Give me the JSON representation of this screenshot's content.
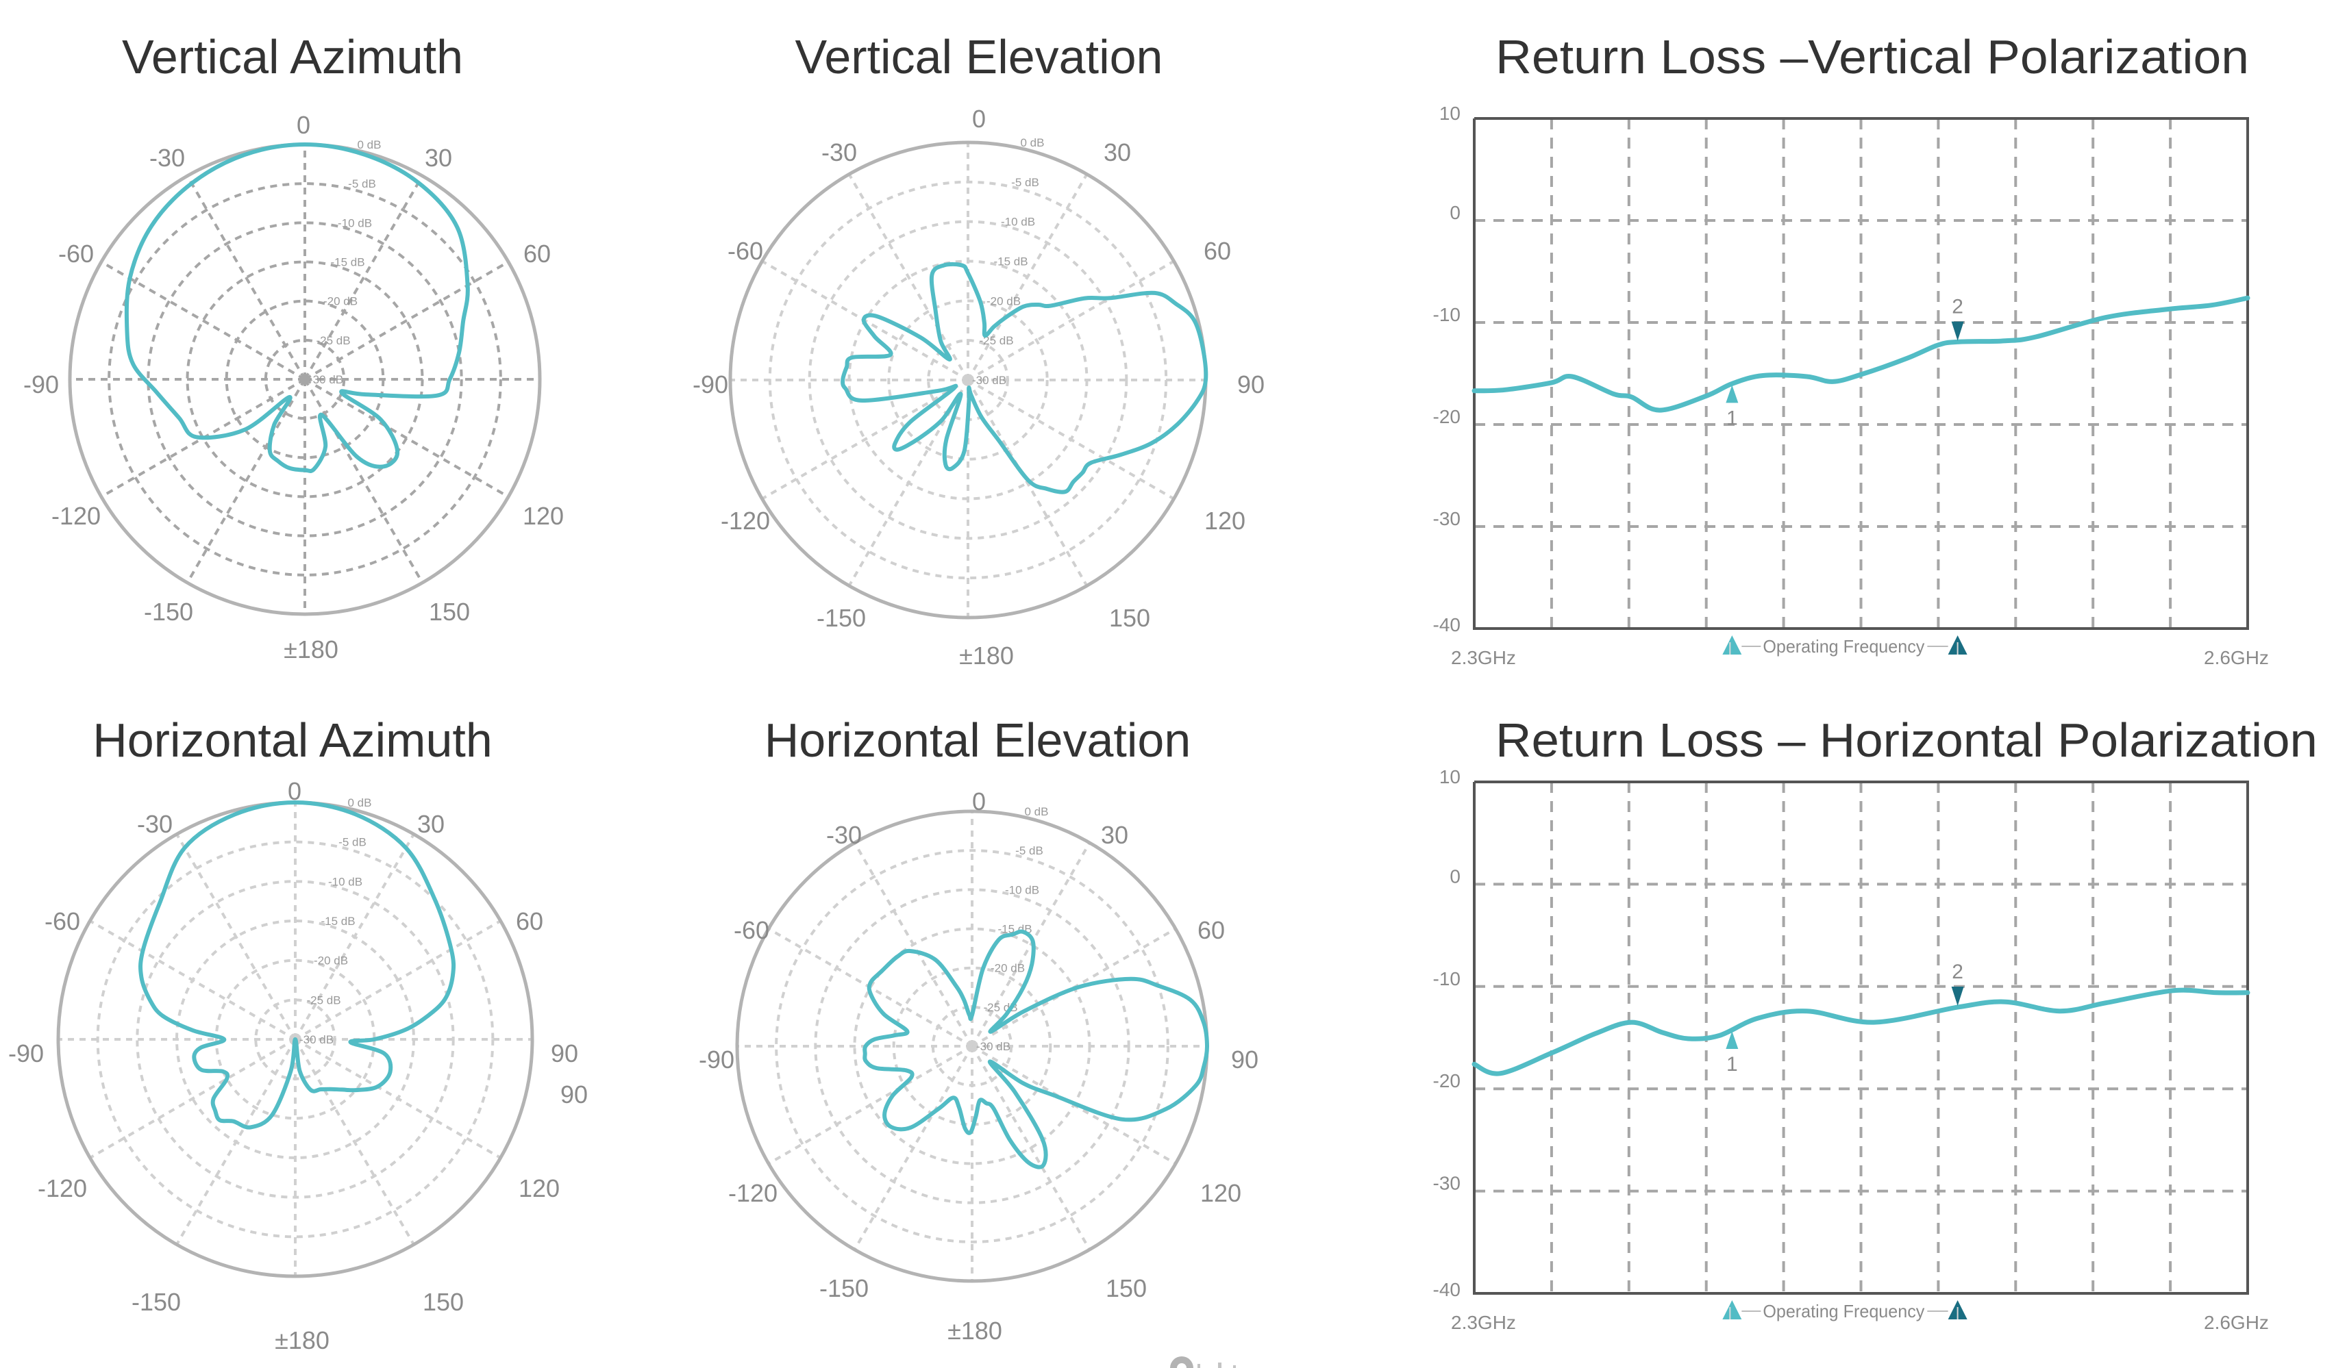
{
  "titles": {
    "vertical_azimuth": "Vertical Azimuth",
    "vertical_elevation": "Vertical Elevation",
    "return_loss_vertical": "Return Loss –Vertical Polarization",
    "horizontal_azimuth": "Horizontal Azimuth",
    "horizontal_elevation": "Horizontal Elevation",
    "return_loss_horizontal": "Return Loss – Horizontal Polarization"
  },
  "colors": {
    "trace": "#52bcc5",
    "marker_light": "#52bcc5",
    "marker_dark": "#1a6e82",
    "grid_dark": "#a6a6a6",
    "grid_light": "#d0d0d0",
    "outer_circle": "#b3b3b3",
    "frame": "#555555",
    "title": "#333333",
    "label": "#8a8a8a"
  },
  "legend": {
    "label": "Operating Frequency",
    "icon_left": "triangle-up-light-icon",
    "icon_right": "triangle-up-dark-icon"
  },
  "logo": {
    "icon": "brand-logo-icon-partial"
  },
  "chart_data": [
    {
      "id": "vertical_azimuth",
      "type": "polar",
      "title": "Vertical Azimuth",
      "radial_unit": "dB",
      "radial_ticks": [
        "0 dB",
        "-5 dB",
        "-10 dB",
        "-15 dB",
        "-20 dB",
        "-25 dB",
        "-30 dB"
      ],
      "rlim": [
        -30,
        0
      ],
      "angle_labels": [
        {
          "text": "0",
          "x": 443,
          "y": 195
        },
        {
          "text": "-30",
          "x": 244,
          "y": 243
        },
        {
          "text": "30",
          "x": 640,
          "y": 243
        },
        {
          "text": "-60",
          "x": 111,
          "y": 383
        },
        {
          "text": "60",
          "x": 784,
          "y": 383
        },
        {
          "text": "-90",
          "x": 60,
          "y": 574
        },
        {
          "text": "-120",
          "x": 111,
          "y": 766
        },
        {
          "text": "120",
          "x": 793,
          "y": 766
        },
        {
          "text": "-150",
          "x": 246,
          "y": 906
        },
        {
          "text": "150",
          "x": 656,
          "y": 906
        },
        {
          "text": "±180",
          "x": 454,
          "y": 961
        }
      ],
      "grid_style": "dark",
      "series": [
        {
          "name": "Vertical Azimuth",
          "angles": [
            0,
            15,
            30,
            45,
            60,
            70,
            80,
            90,
            97,
            104,
            110,
            118,
            128,
            138,
            146,
            155,
            163,
            174,
            180,
            190,
            198,
            206,
            214,
            221,
            230,
            242,
            253,
            265,
            275,
            285,
            300,
            315,
            330,
            345,
            360
          ],
          "values": [
            0,
            -0.3,
            -1,
            -2.5,
            -6,
            -8.5,
            -10,
            -11.5,
            -13,
            -22,
            -25,
            -19,
            -15,
            -15,
            -18,
            -25,
            -21,
            -18.5,
            -18.4,
            -18.5,
            -19,
            -19.8,
            -23,
            -27,
            -20,
            -14.3,
            -13.2,
            -11,
            -8,
            -6.5,
            -4.2,
            -2.3,
            -1.1,
            -0.3,
            0
          ]
        }
      ]
    },
    {
      "id": "vertical_elevation",
      "type": "polar",
      "title": "Vertical Elevation",
      "radial_unit": "dB",
      "radial_ticks": [
        "0 dB",
        "-5 dB",
        "-10 dB",
        "-15 dB",
        "-20 dB",
        "-25 dB",
        "-30 dB"
      ],
      "rlim": [
        -30,
        0
      ],
      "angle_labels": [
        {
          "text": "0",
          "x": 1429,
          "y": 186
        },
        {
          "text": "-30",
          "x": 1225,
          "y": 235
        },
        {
          "text": "30",
          "x": 1631,
          "y": 235
        },
        {
          "text": "-60",
          "x": 1088,
          "y": 379
        },
        {
          "text": "60",
          "x": 1777,
          "y": 379
        },
        {
          "text": "-90",
          "x": 1037,
          "y": 574
        },
        {
          "text": "90",
          "x": 1826,
          "y": 574
        },
        {
          "text": "-120",
          "x": 1088,
          "y": 773
        },
        {
          "text": "120",
          "x": 1788,
          "y": 773
        },
        {
          "text": "-150",
          "x": 1228,
          "y": 915
        },
        {
          "text": "150",
          "x": 1649,
          "y": 915
        },
        {
          "text": "±180",
          "x": 1440,
          "y": 970
        }
      ],
      "grid_style": "light",
      "series": [
        {
          "name": "Vertical Elevation",
          "angles": [
            0,
            9,
            16,
            21,
            26,
            31,
            37,
            43,
            48,
            55,
            60,
            65,
            70,
            75,
            82,
            90,
            95,
            102,
            109,
            116,
            124,
            129,
            134,
            139,
            144,
            149,
            153,
            160,
            168,
            174,
            178,
            183,
            190,
            195,
            200,
            207,
            213,
            220,
            225,
            229,
            234,
            240,
            250,
            259,
            266,
            270,
            276,
            281,
            288,
            295,
            300,
            305,
            312,
            318,
            325,
            335,
            341,
            348,
            357,
            360
          ],
          "values": [
            -16.5,
            -20,
            -22.5,
            -24,
            -22.5,
            -20.8,
            -18.4,
            -17,
            -16,
            -12,
            -9.3,
            -4,
            -2,
            -0.5,
            -0.1,
            0,
            -0.9,
            -3,
            -5.5,
            -8.5,
            -11.3,
            -11.4,
            -11.5,
            -11.3,
            -13,
            -15.2,
            -21.4,
            -25,
            -28,
            -29,
            -27,
            -21,
            -18.7,
            -19,
            -22,
            -28,
            -24,
            -20.4,
            -17.6,
            -17.8,
            -21,
            -28,
            -26,
            -16.4,
            -14.5,
            -14.2,
            -14.6,
            -15.1,
            -19.7,
            -17,
            -14.8,
            -16,
            -22,
            -26.5,
            -24,
            -20.3,
            -16,
            -15.2,
            -15.5,
            -16.5
          ]
        }
      ]
    },
    {
      "id": "horizontal_azimuth",
      "type": "polar",
      "title": "Horizontal Azimuth",
      "radial_unit": "dB",
      "radial_ticks": [
        "0 dB",
        "-5 dB",
        "-10 dB",
        "-15 dB",
        "-20 dB",
        "-25 dB",
        "-30 dB"
      ],
      "rlim": [
        -30,
        0
      ],
      "angle_labels": [
        {
          "text": "0",
          "x": 430,
          "y": 1168
        },
        {
          "text": "-30",
          "x": 226,
          "y": 1216
        },
        {
          "text": "30",
          "x": 629,
          "y": 1216
        },
        {
          "text": "-60",
          "x": 91,
          "y": 1358
        },
        {
          "text": "60",
          "x": 773,
          "y": 1358
        },
        {
          "text": "-90",
          "x": 38,
          "y": 1551
        },
        {
          "text": "90",
          "x": 824,
          "y": 1551
        },
        {
          "text": "90",
          "x": 838,
          "y": 1611
        },
        {
          "text": "-120",
          "x": 91,
          "y": 1748
        },
        {
          "text": "120",
          "x": 787,
          "y": 1748
        },
        {
          "text": "-150",
          "x": 228,
          "y": 1914
        },
        {
          "text": "150",
          "x": 647,
          "y": 1914
        },
        {
          "text": "±180",
          "x": 441,
          "y": 1970
        }
      ],
      "grid_style": "light",
      "series": [
        {
          "name": "Horizontal Azimuth",
          "angles": [
            0,
            15,
            30,
            45,
            60,
            68,
            75,
            80,
            85,
            90,
            93,
            99,
            109,
            120,
            130,
            137,
            145,
            153,
            163,
            172,
            180,
            188,
            197,
            207,
            217,
            223,
            228,
            234,
            240,
            246,
            252,
            260,
            265,
            270,
            275,
            280,
            285,
            292,
            300,
            315,
            330,
            345,
            360
          ],
          "values": [
            0,
            -0.5,
            -2,
            -5,
            -7.2,
            -8.5,
            -10.4,
            -13,
            -16,
            -20,
            -23,
            -18.6,
            -17.3,
            -18,
            -20,
            -21.3,
            -22.3,
            -22.9,
            -23.3,
            -26,
            -30,
            -26,
            -20,
            -17.5,
            -17,
            -16,
            -16.4,
            -17.2,
            -20,
            -20,
            -17.5,
            -17,
            -18,
            -21,
            -17,
            -13,
            -11,
            -9,
            -7.7,
            -5.7,
            -2,
            -0.5,
            0
          ]
        }
      ]
    },
    {
      "id": "horizontal_elevation",
      "type": "polar",
      "title": "Horizontal Elevation",
      "radial_unit": "dB",
      "radial_ticks": [
        "0 dB",
        "-5 dB",
        "-10 dB",
        "-15 dB",
        "-20 dB",
        "-25 dB",
        "-30 dB"
      ],
      "rlim": [
        -30,
        0
      ],
      "angle_labels": [
        {
          "text": "0",
          "x": 1429,
          "y": 1183
        },
        {
          "text": "-30",
          "x": 1232,
          "y": 1232
        },
        {
          "text": "30",
          "x": 1627,
          "y": 1232
        },
        {
          "text": "-60",
          "x": 1097,
          "y": 1371
        },
        {
          "text": "60",
          "x": 1768,
          "y": 1371
        },
        {
          "text": "-90",
          "x": 1046,
          "y": 1560
        },
        {
          "text": "90",
          "x": 1817,
          "y": 1560
        },
        {
          "text": "-120",
          "x": 1099,
          "y": 1755
        },
        {
          "text": "120",
          "x": 1782,
          "y": 1755
        },
        {
          "text": "-150",
          "x": 1232,
          "y": 1894
        },
        {
          "text": "150",
          "x": 1644,
          "y": 1894
        },
        {
          "text": "±180",
          "x": 1423,
          "y": 1956
        }
      ],
      "grid_style": "light",
      "series": [
        {
          "name": "Horizontal Elevation",
          "angles": [
            0,
            8,
            14,
            20,
            24,
            30,
            36,
            41,
            47,
            52,
            56,
            61,
            67,
            72,
            78,
            84,
            90,
            95,
            100,
            108,
            116,
            121,
            126,
            131,
            137,
            143,
            149,
            154,
            158,
            161,
            166,
            172,
            177,
            181,
            185,
            192,
            200,
            208,
            217,
            225,
            232,
            238,
            243,
            250,
            257,
            262,
            266,
            270,
            274,
            278,
            283,
            290,
            297,
            302,
            310,
            320,
            327,
            337,
            345,
            350,
            355,
            360
          ],
          "values": [
            -26,
            -20,
            -16,
            -14.8,
            -14,
            -14.5,
            -17,
            -20,
            -24,
            -27,
            -22,
            -14.4,
            -8,
            -5,
            -1.5,
            -0.3,
            0,
            -0.3,
            -1,
            -4,
            -8.7,
            -17.8,
            -22,
            -27,
            -22,
            -15,
            -12.3,
            -13.4,
            -17,
            -21.6,
            -22.5,
            -23,
            -21,
            -19,
            -19.5,
            -22,
            -23,
            -21,
            -17,
            -15.4,
            -15.8,
            -18,
            -21.3,
            -21,
            -17.5,
            -16.3,
            -16.3,
            -16.4,
            -17.5,
            -20,
            -21.5,
            -18,
            -15.5,
            -14.7,
            -15,
            -15.1,
            -15.5,
            -18,
            -22,
            -24,
            -26,
            -26
          ]
        }
      ]
    },
    {
      "id": "return_loss_vertical",
      "type": "line",
      "title": "Return Loss –Vertical Polarization",
      "xlabel": "",
      "ylabel": "",
      "x_tick_labels": [
        "2.3GHz",
        "2.6GHz"
      ],
      "y_ticks": [
        10,
        0,
        -10,
        -20,
        -30,
        -40
      ],
      "xlim": [
        2.3,
        2.6
      ],
      "ylim": [
        -40,
        10
      ],
      "grid": true,
      "x_gridlines": 10,
      "legend": {
        "text": "Operating Frequency",
        "position": "bottom-center"
      },
      "markers": [
        {
          "label": "1",
          "x": 2.4,
          "direction": "up",
          "color": "light"
        },
        {
          "label": "2",
          "x": 2.4875,
          "direction": "down",
          "color": "dark"
        }
      ],
      "series": [
        {
          "name": "Return Loss (dB)",
          "x": [
            2.3,
            2.312,
            2.33,
            2.338,
            2.354,
            2.361,
            2.372,
            2.39,
            2.4,
            2.412,
            2.429,
            2.439,
            2.45,
            2.468,
            2.48,
            2.488,
            2.506,
            2.518,
            2.545,
            2.569,
            2.586,
            2.6
          ],
          "values": [
            -16.7,
            -16.6,
            -15.9,
            -15.3,
            -17.0,
            -17.3,
            -18.6,
            -17.2,
            -16.0,
            -15.2,
            -15.3,
            -15.8,
            -15.1,
            -13.5,
            -12.2,
            -11.9,
            -11.8,
            -11.4,
            -9.5,
            -8.7,
            -8.3,
            -7.6
          ]
        }
      ]
    },
    {
      "id": "return_loss_horizontal",
      "type": "line",
      "title": "Return Loss – Horizontal Polarization",
      "xlabel": "",
      "ylabel": "",
      "x_tick_labels": [
        "2.3GHz",
        "2.6GHz"
      ],
      "y_ticks": [
        10,
        0,
        -10,
        -20,
        -30,
        -40
      ],
      "xlim": [
        2.3,
        2.6
      ],
      "ylim": [
        -40,
        10
      ],
      "grid": true,
      "x_gridlines": 10,
      "legend": {
        "text": "Operating Frequency",
        "position": "bottom-center"
      },
      "markers": [
        {
          "label": "1",
          "x": 2.4,
          "direction": "up",
          "color": "light"
        },
        {
          "label": "2",
          "x": 2.4875,
          "direction": "down",
          "color": "dark"
        }
      ],
      "series": [
        {
          "name": "Return Loss (dB)",
          "x": [
            2.3,
            2.31,
            2.33,
            2.347,
            2.361,
            2.373,
            2.383,
            2.395,
            2.41,
            2.429,
            2.455,
            2.488,
            2.506,
            2.527,
            2.545,
            2.571,
            2.588,
            2.6
          ],
          "values": [
            -17.6,
            -18.5,
            -16.5,
            -14.6,
            -13.5,
            -14.5,
            -15.1,
            -14.8,
            -13.1,
            -12.4,
            -13.5,
            -12.0,
            -11.5,
            -12.4,
            -11.6,
            -10.4,
            -10.6,
            -10.6
          ]
        }
      ]
    }
  ]
}
